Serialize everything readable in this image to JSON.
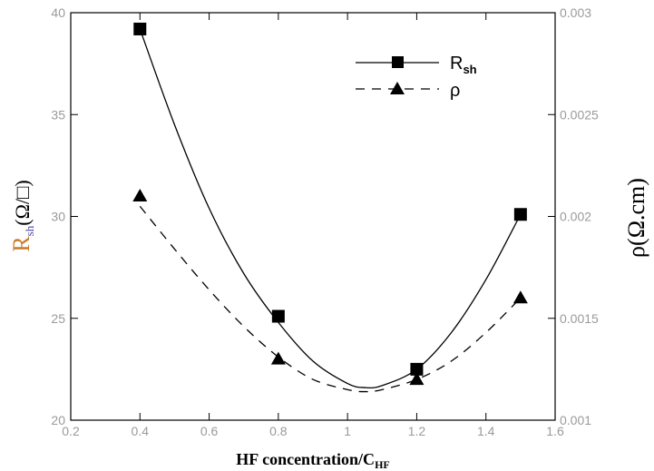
{
  "chart_data": {
    "type": "scatter",
    "title": "",
    "x_axis": {
      "label_main": "HF concentration/C",
      "label_sub": "HF",
      "range": [
        0.2,
        1.6
      ],
      "ticks": [
        0.2,
        0.4,
        0.6,
        0.8,
        1,
        1.2,
        1.4,
        1.6
      ],
      "tick_labels": [
        "0.2",
        "0.4",
        "0.6",
        "0.8",
        "1",
        "1.2",
        "1.4",
        "1.6"
      ]
    },
    "y_left_axis": {
      "label_main": "R",
      "label_sub": "sh",
      "label_unit": "(Ω/□)",
      "range": [
        20,
        40
      ],
      "ticks": [
        20,
        25,
        30,
        35,
        40
      ],
      "tick_labels": [
        "20",
        "25",
        "30",
        "35",
        "40"
      ]
    },
    "y_right_axis": {
      "label_main": "ρ(Ω.cm)",
      "range": [
        0.001,
        0.003
      ],
      "ticks": [
        0.001,
        0.0015,
        0.002,
        0.0025,
        0.003
      ],
      "tick_labels": [
        "0.001",
        "0.0015",
        "0.002",
        "0.0025",
        "0.003"
      ]
    },
    "series": [
      {
        "name": "R",
        "name_sub": "sh",
        "axis": "left",
        "marker": "square",
        "line_style": "solid",
        "x": [
          0.4,
          0.8,
          1.2,
          1.5
        ],
        "y": [
          39.2,
          25.1,
          22.5,
          30.1
        ],
        "fit_x": [
          0.4,
          0.5,
          0.6,
          0.7,
          0.8,
          0.9,
          1.0,
          1.05,
          1.1,
          1.2,
          1.3,
          1.4,
          1.5
        ],
        "fit_y": [
          39.2,
          34.5,
          30.4,
          27.2,
          24.8,
          22.9,
          21.8,
          21.6,
          21.7,
          22.5,
          24.3,
          26.9,
          30.1
        ]
      },
      {
        "name": "ρ",
        "axis": "right",
        "marker": "triangle",
        "line_style": "dashed",
        "x": [
          0.4,
          0.8,
          1.2,
          1.5
        ],
        "y": [
          0.0021,
          0.0013,
          0.0012,
          0.0016
        ],
        "fit_x": [
          0.4,
          0.5,
          0.6,
          0.7,
          0.8,
          0.9,
          1.0,
          1.05,
          1.1,
          1.2,
          1.3,
          1.4,
          1.5
        ],
        "fit_y": [
          0.00205,
          0.00184,
          0.00164,
          0.00146,
          0.00131,
          0.0012,
          0.00115,
          0.00114,
          0.00115,
          0.0012,
          0.00129,
          0.00143,
          0.0016
        ]
      }
    ],
    "legend": {
      "position": "top-right"
    },
    "grid": false
  }
}
